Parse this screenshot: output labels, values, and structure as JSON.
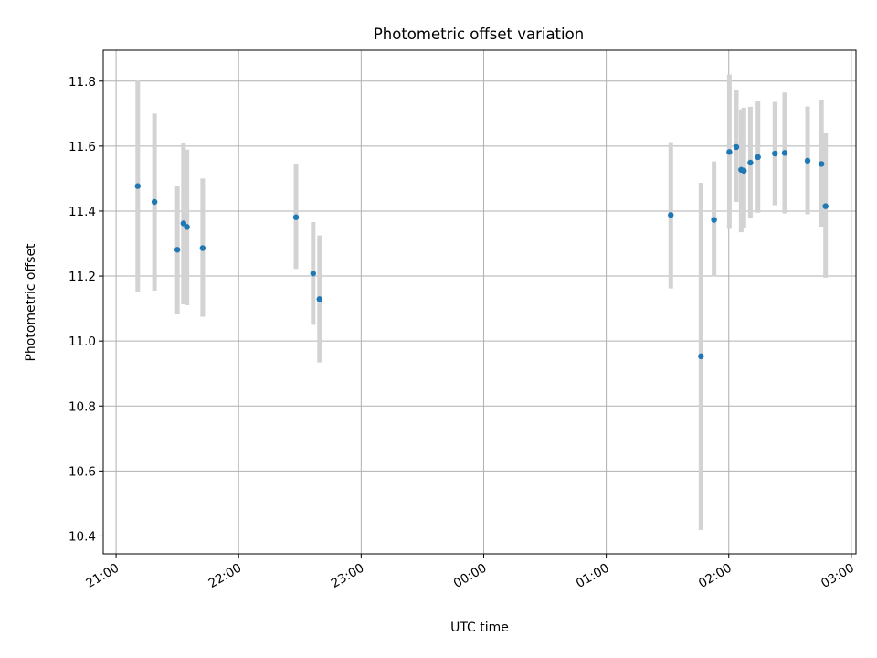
{
  "chart_data": {
    "type": "scatter",
    "title": "Photometric offset variation",
    "xlabel": "UTC time",
    "ylabel": "Photometric offset",
    "x_tick_labels": [
      "21:00",
      "22:00",
      "23:00",
      "00:00",
      "01:00",
      "02:00",
      "03:00"
    ],
    "x_tick_minutes": [
      0,
      60,
      120,
      180,
      240,
      300,
      360
    ],
    "xlim_minutes": [
      -6.3,
      362.3
    ],
    "y_tick_labels": [
      "10.4",
      "10.6",
      "10.8",
      "11.0",
      "11.2",
      "11.4",
      "11.6",
      "11.8"
    ],
    "y_ticks": [
      10.4,
      10.6,
      10.8,
      11.0,
      11.2,
      11.4,
      11.6,
      11.8
    ],
    "ylim": [
      10.345,
      11.895
    ],
    "grid": true,
    "colors": {
      "point": "#1f77b4",
      "errorbar": "#d3d3d3",
      "grid": "#b0b0b0",
      "axes": "#000000"
    },
    "series": [
      {
        "t_minutes": [
          10.6,
          18.8,
          30.0,
          33.0,
          34.7,
          42.4,
          88.1,
          96.5,
          99.6,
          271.6,
          286.4,
          292.8,
          300.3,
          303.7,
          306.1,
          307.4,
          310.6,
          314.3,
          322.6,
          327.4,
          338.6,
          345.4,
          347.4
        ],
        "y": [
          11.477,
          11.428,
          11.281,
          11.362,
          11.351,
          11.286,
          11.381,
          11.208,
          11.129,
          11.388,
          10.953,
          11.373,
          11.582,
          11.597,
          11.527,
          11.524,
          11.549,
          11.566,
          11.577,
          11.579,
          11.555,
          11.545,
          11.415
        ],
        "err_low": [
          11.152,
          11.155,
          11.082,
          11.113,
          11.11,
          11.075,
          11.222,
          11.05,
          10.934,
          11.162,
          10.418,
          11.198,
          11.345,
          11.428,
          11.335,
          11.348,
          11.377,
          11.395,
          11.418,
          11.393,
          11.39,
          11.352,
          11.195
        ],
        "err_high": [
          11.805,
          11.7,
          11.476,
          11.608,
          11.589,
          11.5,
          11.543,
          11.366,
          11.325,
          11.612,
          11.487,
          11.553,
          11.82,
          11.772,
          11.713,
          11.718,
          11.721,
          11.738,
          11.736,
          11.765,
          11.722,
          11.743,
          11.641
        ]
      }
    ]
  }
}
